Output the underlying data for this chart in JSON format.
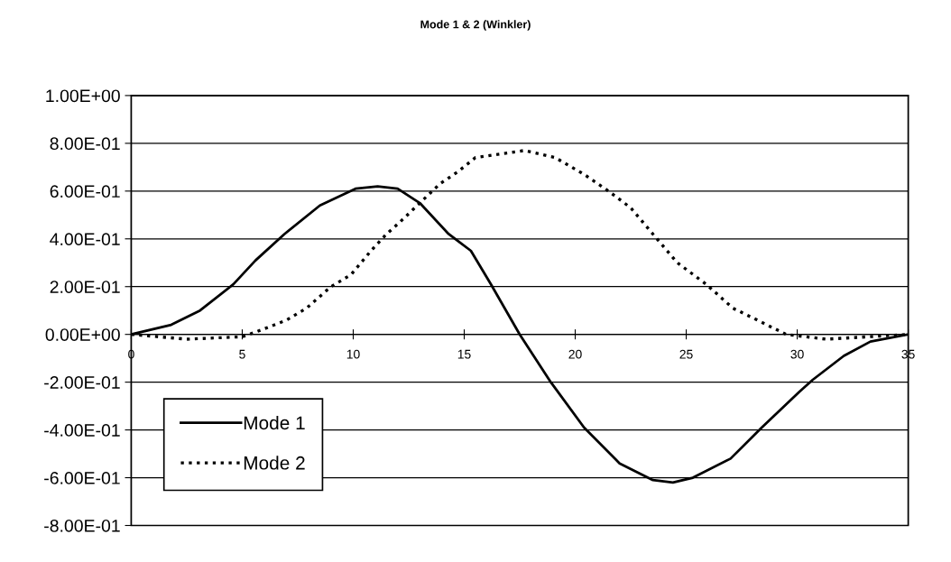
{
  "chart_data": {
    "type": "line",
    "title": "Mode 1 & 2 (Winkler)",
    "xlim": [
      0,
      35
    ],
    "xticks": [
      0,
      5,
      10,
      15,
      20,
      25,
      30,
      35
    ],
    "ylim": [
      -0.8,
      1.0
    ],
    "yticks": [
      {
        "value": -0.8,
        "label": "-8.00E-01"
      },
      {
        "value": -0.6,
        "label": "-6.00E-01"
      },
      {
        "value": -0.4,
        "label": "-4.00E-01"
      },
      {
        "value": -0.2,
        "label": "-2.00E-01"
      },
      {
        "value": 0,
        "label": "0.00E+00"
      },
      {
        "value": 0.2,
        "label": "2.00E-01"
      },
      {
        "value": 0.4,
        "label": "4.00E-01"
      },
      {
        "value": 0.6,
        "label": "6.00E-01"
      },
      {
        "value": 0.8,
        "label": "8.00E-01"
      },
      {
        "value": 1.0,
        "label": "1.00E+00"
      }
    ],
    "grid": "y",
    "legend": "bottom left",
    "marker": "none",
    "series": [
      {
        "name": "Mode 1",
        "color": "#000000",
        "line_style": "solid",
        "x": [
          0,
          1.8,
          3.1,
          4.6,
          5.6,
          6.9,
          8.5,
          10.1,
          11.1,
          12.0,
          13.0,
          14.3,
          15.3,
          16.2,
          17.5,
          18.9,
          20.4,
          22.0,
          23.5,
          24.4,
          25.3,
          27.0,
          28.4,
          30.1,
          30.7,
          32.1,
          33.3,
          35
        ],
        "values": [
          0,
          0.04,
          0.1,
          0.21,
          0.31,
          0.42,
          0.54,
          0.61,
          0.62,
          0.61,
          0.55,
          0.42,
          0.35,
          0.21,
          0.0,
          -0.2,
          -0.39,
          -0.54,
          -0.61,
          -0.62,
          -0.6,
          -0.52,
          -0.39,
          -0.24,
          -0.19,
          -0.09,
          -0.03,
          0
        ]
      },
      {
        "name": "Mode 2",
        "color": "#000000",
        "line_style": "dotted",
        "x": [
          0,
          2.5,
          5.0,
          5.9,
          7.0,
          7.9,
          9.0,
          9.9,
          10.8,
          11.5,
          12.1,
          13.0,
          13.9,
          14.7,
          15.5,
          17.0,
          17.7,
          19.1,
          20.4,
          21.5,
          22.5,
          23.5,
          24.6,
          25.9,
          27.1,
          28.2,
          29.5,
          31.3,
          33.2,
          35
        ],
        "values": [
          0,
          -0.02,
          -0.01,
          0.02,
          0.06,
          0.11,
          0.2,
          0.25,
          0.35,
          0.42,
          0.47,
          0.55,
          0.63,
          0.68,
          0.74,
          0.76,
          0.77,
          0.74,
          0.67,
          0.6,
          0.53,
          0.42,
          0.3,
          0.21,
          0.11,
          0.06,
          0.0,
          -0.02,
          -0.01,
          0
        ]
      }
    ]
  }
}
